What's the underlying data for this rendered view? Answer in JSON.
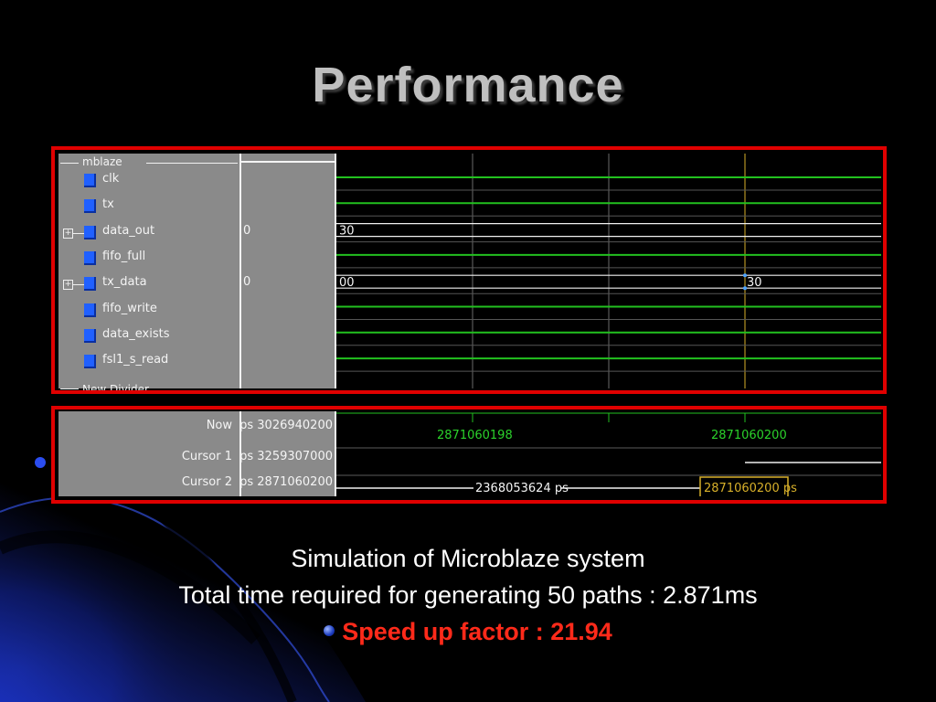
{
  "slide": {
    "title": "Performance",
    "caption_line1": "Simulation of Microblaze system",
    "caption_line2": "Total time required for generating 50 paths : 2.871ms",
    "caption_line3": "Speed up factor :  21.94"
  },
  "colors": {
    "background": "#000000",
    "frame_border": "#e00000",
    "panel_gray": "#8a8a8a",
    "signal_green": "#22c11f",
    "highlight_red": "#ff2a1a",
    "cursor_yellow": "#d8b02a"
  },
  "wave_window": {
    "group_label": "mblaze",
    "divider_label": "New Divider",
    "signals": [
      {
        "name": "clk",
        "icon": "signal-icon",
        "expandable": false,
        "value": "",
        "wave_label": "",
        "wave_label_2": ""
      },
      {
        "name": "tx",
        "icon": "signal-icon",
        "expandable": false,
        "value": "",
        "wave_label": "",
        "wave_label_2": ""
      },
      {
        "name": "data_out",
        "icon": "signal-icon",
        "expandable": true,
        "value": "0",
        "wave_label": "30",
        "wave_label_2": ""
      },
      {
        "name": "fifo_full",
        "icon": "signal-icon",
        "expandable": false,
        "value": "",
        "wave_label": "",
        "wave_label_2": ""
      },
      {
        "name": "tx_data",
        "icon": "signal-icon",
        "expandable": true,
        "value": "0",
        "wave_label": "00",
        "wave_label_2": "30"
      },
      {
        "name": "fifo_write",
        "icon": "signal-icon",
        "expandable": false,
        "value": "",
        "wave_label": "",
        "wave_label_2": ""
      },
      {
        "name": "data_exists",
        "icon": "signal-icon",
        "expandable": false,
        "value": "",
        "wave_label": "",
        "wave_label_2": ""
      },
      {
        "name": "fsl1_s_read",
        "icon": "signal-icon",
        "expandable": false,
        "value": "",
        "wave_label": "",
        "wave_label_2": ""
      }
    ]
  },
  "cursor_window": {
    "rows": [
      {
        "name": "Now",
        "value": "3026940200 ps"
      },
      {
        "name": "Cursor 1",
        "value": "3259307000 ps"
      },
      {
        "name": "Cursor 2",
        "value": "2871060200 ps"
      }
    ],
    "timeline_label_1": "2871060198",
    "timeline_label_2": "2871060200",
    "delta_label": "2368053624 ps",
    "cursor_label": "2871060200 ps"
  }
}
